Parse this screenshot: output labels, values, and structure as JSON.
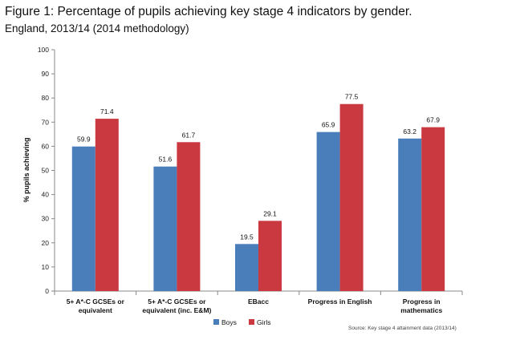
{
  "figure": {
    "title": "Figure 1: Percentage of pupils achieving key stage 4 indicators by gender.",
    "subtitle": "England, 2013/14 (2014 methodology)"
  },
  "chart_data": {
    "type": "bar",
    "title": "Figure 1: Percentage of pupils achieving key stage 4 indicators by gender.",
    "subtitle": "England, 2013/14 (2014 methodology)",
    "xlabel": "",
    "ylabel": "% pupils achieving",
    "ylim": [
      0,
      100
    ],
    "yticks": [
      0,
      10,
      20,
      30,
      40,
      50,
      60,
      70,
      80,
      90,
      100
    ],
    "grid": false,
    "legend_position": "bottom-center",
    "categories": [
      [
        "5+ A*-C GCSEs or",
        "equivalent"
      ],
      [
        "5+ A*-C GCSEs or",
        "equivalent (inc. E&M)"
      ],
      [
        "EBacc"
      ],
      [
        "Progress in English"
      ],
      [
        "Progress in",
        "mathematics"
      ]
    ],
    "series": [
      {
        "name": "Boys",
        "color": "#4a7ebb",
        "values": [
          59.9,
          51.6,
          19.5,
          65.9,
          63.2
        ]
      },
      {
        "name": "Girls",
        "color": "#c9393f",
        "values": [
          71.4,
          61.7,
          29.1,
          77.5,
          67.9
        ]
      }
    ],
    "source": "Source: Key stage 4 attainment data (2013/14)"
  }
}
